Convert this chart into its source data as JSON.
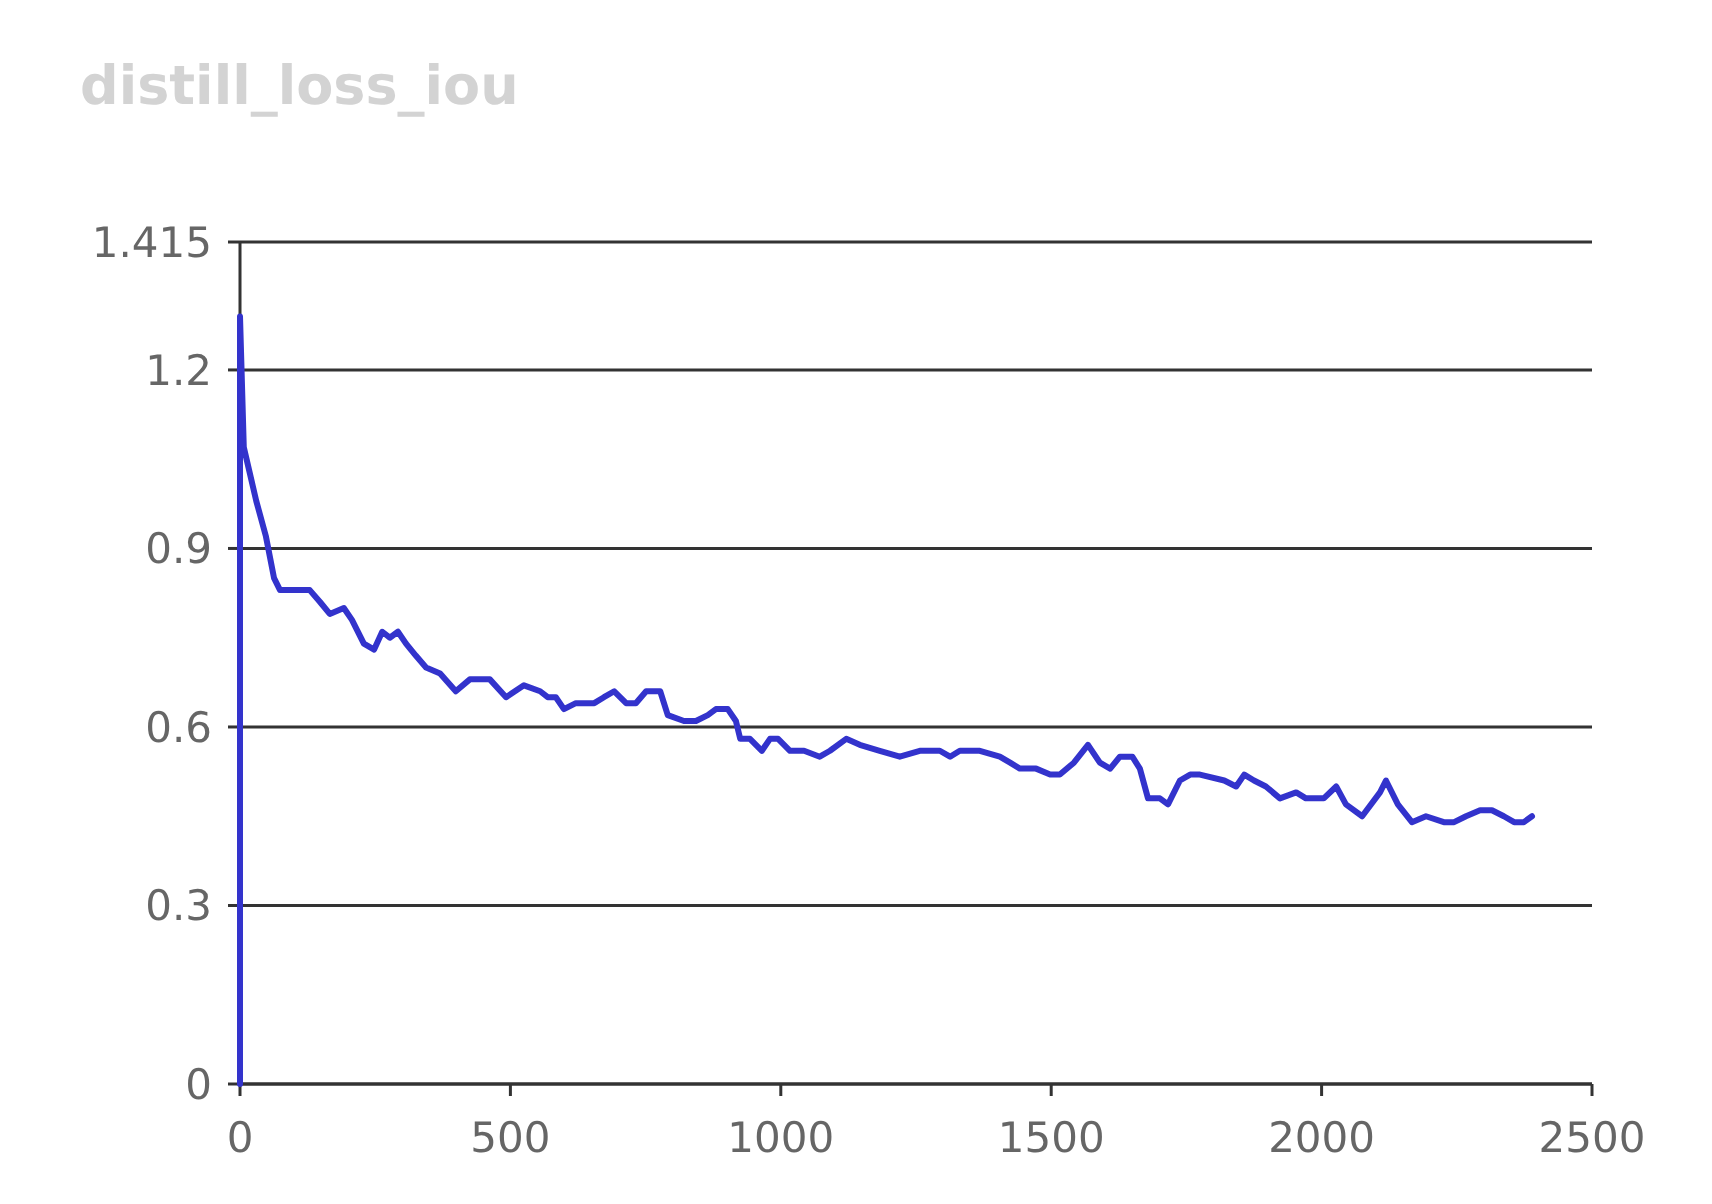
{
  "chart_data": {
    "type": "line",
    "title": "distill_loss_iou",
    "x": [
      0,
      0,
      7,
      30,
      48,
      63,
      74,
      129,
      148,
      166,
      192,
      207,
      229,
      248,
      263,
      277,
      292,
      307,
      325,
      344,
      370,
      399,
      425,
      462,
      492,
      525,
      555,
      569,
      584,
      599,
      621,
      655,
      673,
      692,
      714,
      732,
      751,
      777,
      791,
      821,
      843,
      865,
      880,
      902,
      917,
      925,
      943,
      965,
      980,
      995,
      1017,
      1043,
      1072,
      1091,
      1121,
      1146,
      1183,
      1220,
      1257,
      1294,
      1313,
      1331,
      1368,
      1405,
      1424,
      1442,
      1472,
      1498,
      1516,
      1542,
      1568,
      1590,
      1609,
      1627,
      1650,
      1664,
      1679,
      1701,
      1716,
      1738,
      1757,
      1775,
      1820,
      1842,
      1857,
      1875,
      1897,
      1923,
      1953,
      1971,
      2004,
      2027,
      2045,
      2075,
      2108,
      2119,
      2141,
      2167,
      2193,
      2226,
      2245,
      2267,
      2293,
      2315,
      2337,
      2356,
      2374,
      2389
    ],
    "series": [
      {
        "color": "#3333cc",
        "values": [
          0,
          1.29,
          1.07,
          0.98,
          0.92,
          0.85,
          0.83,
          0.83,
          0.81,
          0.79,
          0.8,
          0.78,
          0.74,
          0.73,
          0.76,
          0.75,
          0.76,
          0.74,
          0.72,
          0.7,
          0.69,
          0.66,
          0.68,
          0.68,
          0.65,
          0.67,
          0.66,
          0.65,
          0.65,
          0.63,
          0.64,
          0.64,
          0.65,
          0.66,
          0.64,
          0.64,
          0.66,
          0.66,
          0.62,
          0.61,
          0.61,
          0.62,
          0.63,
          0.63,
          0.61,
          0.58,
          0.58,
          0.56,
          0.58,
          0.58,
          0.56,
          0.56,
          0.55,
          0.56,
          0.58,
          0.57,
          0.56,
          0.55,
          0.56,
          0.56,
          0.55,
          0.56,
          0.56,
          0.55,
          0.54,
          0.53,
          0.53,
          0.52,
          0.52,
          0.54,
          0.57,
          0.54,
          0.53,
          0.55,
          0.55,
          0.53,
          0.48,
          0.48,
          0.47,
          0.51,
          0.52,
          0.52,
          0.51,
          0.5,
          0.52,
          0.51,
          0.5,
          0.48,
          0.49,
          0.48,
          0.48,
          0.5,
          0.47,
          0.45,
          0.49,
          0.51,
          0.47,
          0.44,
          0.45,
          0.44,
          0.44,
          0.45,
          0.46,
          0.46,
          0.45,
          0.44,
          0.44,
          0.45
        ]
      }
    ],
    "xlim": [
      0,
      2500
    ],
    "xticks": [
      0,
      500,
      1000,
      1500,
      2000,
      2500
    ],
    "ylim": [
      0,
      1.415
    ],
    "yticks": [
      0,
      0.3,
      0.6,
      0.9,
      1.2,
      1.415
    ],
    "grid": "y"
  }
}
